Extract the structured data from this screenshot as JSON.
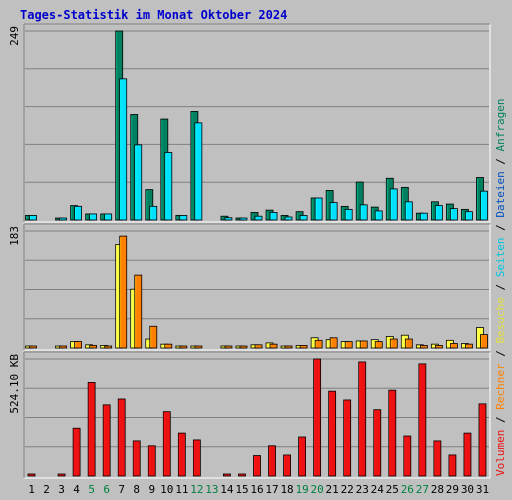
{
  "window": {
    "title": "Tages-Statistik im Monat Oktober 2024"
  },
  "colors": {
    "background": "#c0c0c0",
    "title": "#0000cc",
    "grid": "#808080",
    "anfragen": "#008060",
    "seiten": "#00e0ff",
    "besuche": "#ffff40",
    "rechner": "#ff8000",
    "volumen": "#ee1111",
    "dateien": "#0050c0",
    "weekend_label": "#008040"
  },
  "chart_data": [
    {
      "type": "bar",
      "panel": "requests",
      "y_tick_label": "249",
      "ylim": [
        0,
        249
      ],
      "grid": true,
      "categories": [
        "1",
        "2",
        "3",
        "4",
        "5",
        "6",
        "7",
        "8",
        "9",
        "10",
        "11",
        "12",
        "13",
        "14",
        "15",
        "16",
        "17",
        "18",
        "19",
        "20",
        "21",
        "22",
        "23",
        "24",
        "25",
        "26",
        "27",
        "28",
        "29",
        "30",
        "31"
      ],
      "series": [
        {
          "name": "Anfragen",
          "color": "#008060",
          "values": [
            6,
            0,
            2,
            19,
            8,
            8,
            249,
            139,
            40,
            133,
            6,
            143,
            0,
            5,
            2,
            10,
            13,
            6,
            11,
            29,
            39,
            18,
            50,
            17,
            55,
            43,
            9,
            24,
            21,
            14,
            56
          ]
        },
        {
          "name": "Seiten",
          "color": "#00e0ff",
          "values": [
            6,
            0,
            2,
            18,
            8,
            8,
            186,
            99,
            18,
            89,
            6,
            128,
            0,
            3,
            2,
            5,
            10,
            4,
            6,
            29,
            23,
            14,
            20,
            12,
            41,
            24,
            9,
            19,
            15,
            11,
            38
          ]
        }
      ]
    },
    {
      "type": "bar",
      "panel": "visits",
      "y_tick_label": "183",
      "ylim": [
        0,
        183
      ],
      "grid": true,
      "categories": [
        "1",
        "2",
        "3",
        "4",
        "5",
        "6",
        "7",
        "8",
        "9",
        "10",
        "11",
        "12",
        "13",
        "14",
        "15",
        "16",
        "17",
        "18",
        "19",
        "20",
        "21",
        "22",
        "23",
        "24",
        "25",
        "26",
        "27",
        "28",
        "29",
        "30",
        "31"
      ],
      "series": [
        {
          "name": "Besuche",
          "color": "#ffff40",
          "values": [
            2,
            0,
            1,
            10,
            5,
            4,
            162,
            92,
            14,
            6,
            2,
            3,
            0,
            2,
            2,
            5,
            8,
            3,
            4,
            16,
            13,
            10,
            11,
            13,
            18,
            20,
            5,
            6,
            12,
            7,
            32
          ]
        },
        {
          "name": "Rechner",
          "color": "#ff8000",
          "values": [
            2,
            0,
            1,
            10,
            4,
            3,
            175,
            114,
            34,
            6,
            2,
            3,
            0,
            2,
            2,
            5,
            6,
            3,
            4,
            12,
            16,
            10,
            11,
            10,
            14,
            14,
            4,
            4,
            7,
            6,
            21
          ]
        }
      ]
    },
    {
      "type": "bar",
      "panel": "volume",
      "y_tick_label": "524.10 KB",
      "ylim": [
        0,
        600
      ],
      "grid": true,
      "categories": [
        "1",
        "2",
        "3",
        "4",
        "5",
        "6",
        "7",
        "8",
        "9",
        "10",
        "11",
        "12",
        "13",
        "14",
        "15",
        "16",
        "17",
        "18",
        "19",
        "20",
        "21",
        "22",
        "23",
        "24",
        "25",
        "26",
        "27",
        "28",
        "29",
        "30",
        "31"
      ],
      "series": [
        {
          "name": "Volumen",
          "color": "#ee1111",
          "values": [
            8,
            0,
            8,
            245,
            480,
            365,
            395,
            180,
            155,
            330,
            220,
            185,
            0,
            8,
            8,
            105,
            155,
            108,
            200,
            600,
            435,
            390,
            585,
            340,
            440,
            205,
            575,
            180,
            108,
            220,
            370
          ]
        }
      ]
    }
  ],
  "x_axis": {
    "labels": [
      {
        "text": "1",
        "weekend": false
      },
      {
        "text": "2",
        "weekend": false
      },
      {
        "text": "3",
        "weekend": false
      },
      {
        "text": "4",
        "weekend": false
      },
      {
        "text": "5",
        "weekend": true
      },
      {
        "text": "6",
        "weekend": true
      },
      {
        "text": "7",
        "weekend": false
      },
      {
        "text": "8",
        "weekend": false
      },
      {
        "text": "9",
        "weekend": false
      },
      {
        "text": "10",
        "weekend": false
      },
      {
        "text": "11",
        "weekend": false
      },
      {
        "text": "12",
        "weekend": true
      },
      {
        "text": "13",
        "weekend": true
      },
      {
        "text": "14",
        "weekend": false
      },
      {
        "text": "15",
        "weekend": false
      },
      {
        "text": "16",
        "weekend": false
      },
      {
        "text": "17",
        "weekend": false
      },
      {
        "text": "18",
        "weekend": false
      },
      {
        "text": "19",
        "weekend": true
      },
      {
        "text": "20",
        "weekend": true
      },
      {
        "text": "21",
        "weekend": false
      },
      {
        "text": "22",
        "weekend": false
      },
      {
        "text": "23",
        "weekend": false
      },
      {
        "text": "24",
        "weekend": false
      },
      {
        "text": "25",
        "weekend": false
      },
      {
        "text": "26",
        "weekend": true
      },
      {
        "text": "27",
        "weekend": true
      },
      {
        "text": "28",
        "weekend": false
      },
      {
        "text": "29",
        "weekend": false
      },
      {
        "text": "30",
        "weekend": false
      },
      {
        "text": "31",
        "weekend": false
      }
    ]
  },
  "legend": {
    "separator": " / ",
    "items": [
      {
        "key": "volumen",
        "text": "Volumen",
        "color": "#ee1111"
      },
      {
        "key": "rechner",
        "text": "Rechner",
        "color": "#ff8000"
      },
      {
        "key": "besuche",
        "text": "Besuche",
        "color": "#e0e040"
      },
      {
        "key": "seiten",
        "text": "Seiten",
        "color": "#00c8e0"
      },
      {
        "key": "dateien",
        "text": "Dateien",
        "color": "#0050c0"
      },
      {
        "key": "anfragen",
        "text": "Anfragen",
        "color": "#008060"
      }
    ]
  }
}
